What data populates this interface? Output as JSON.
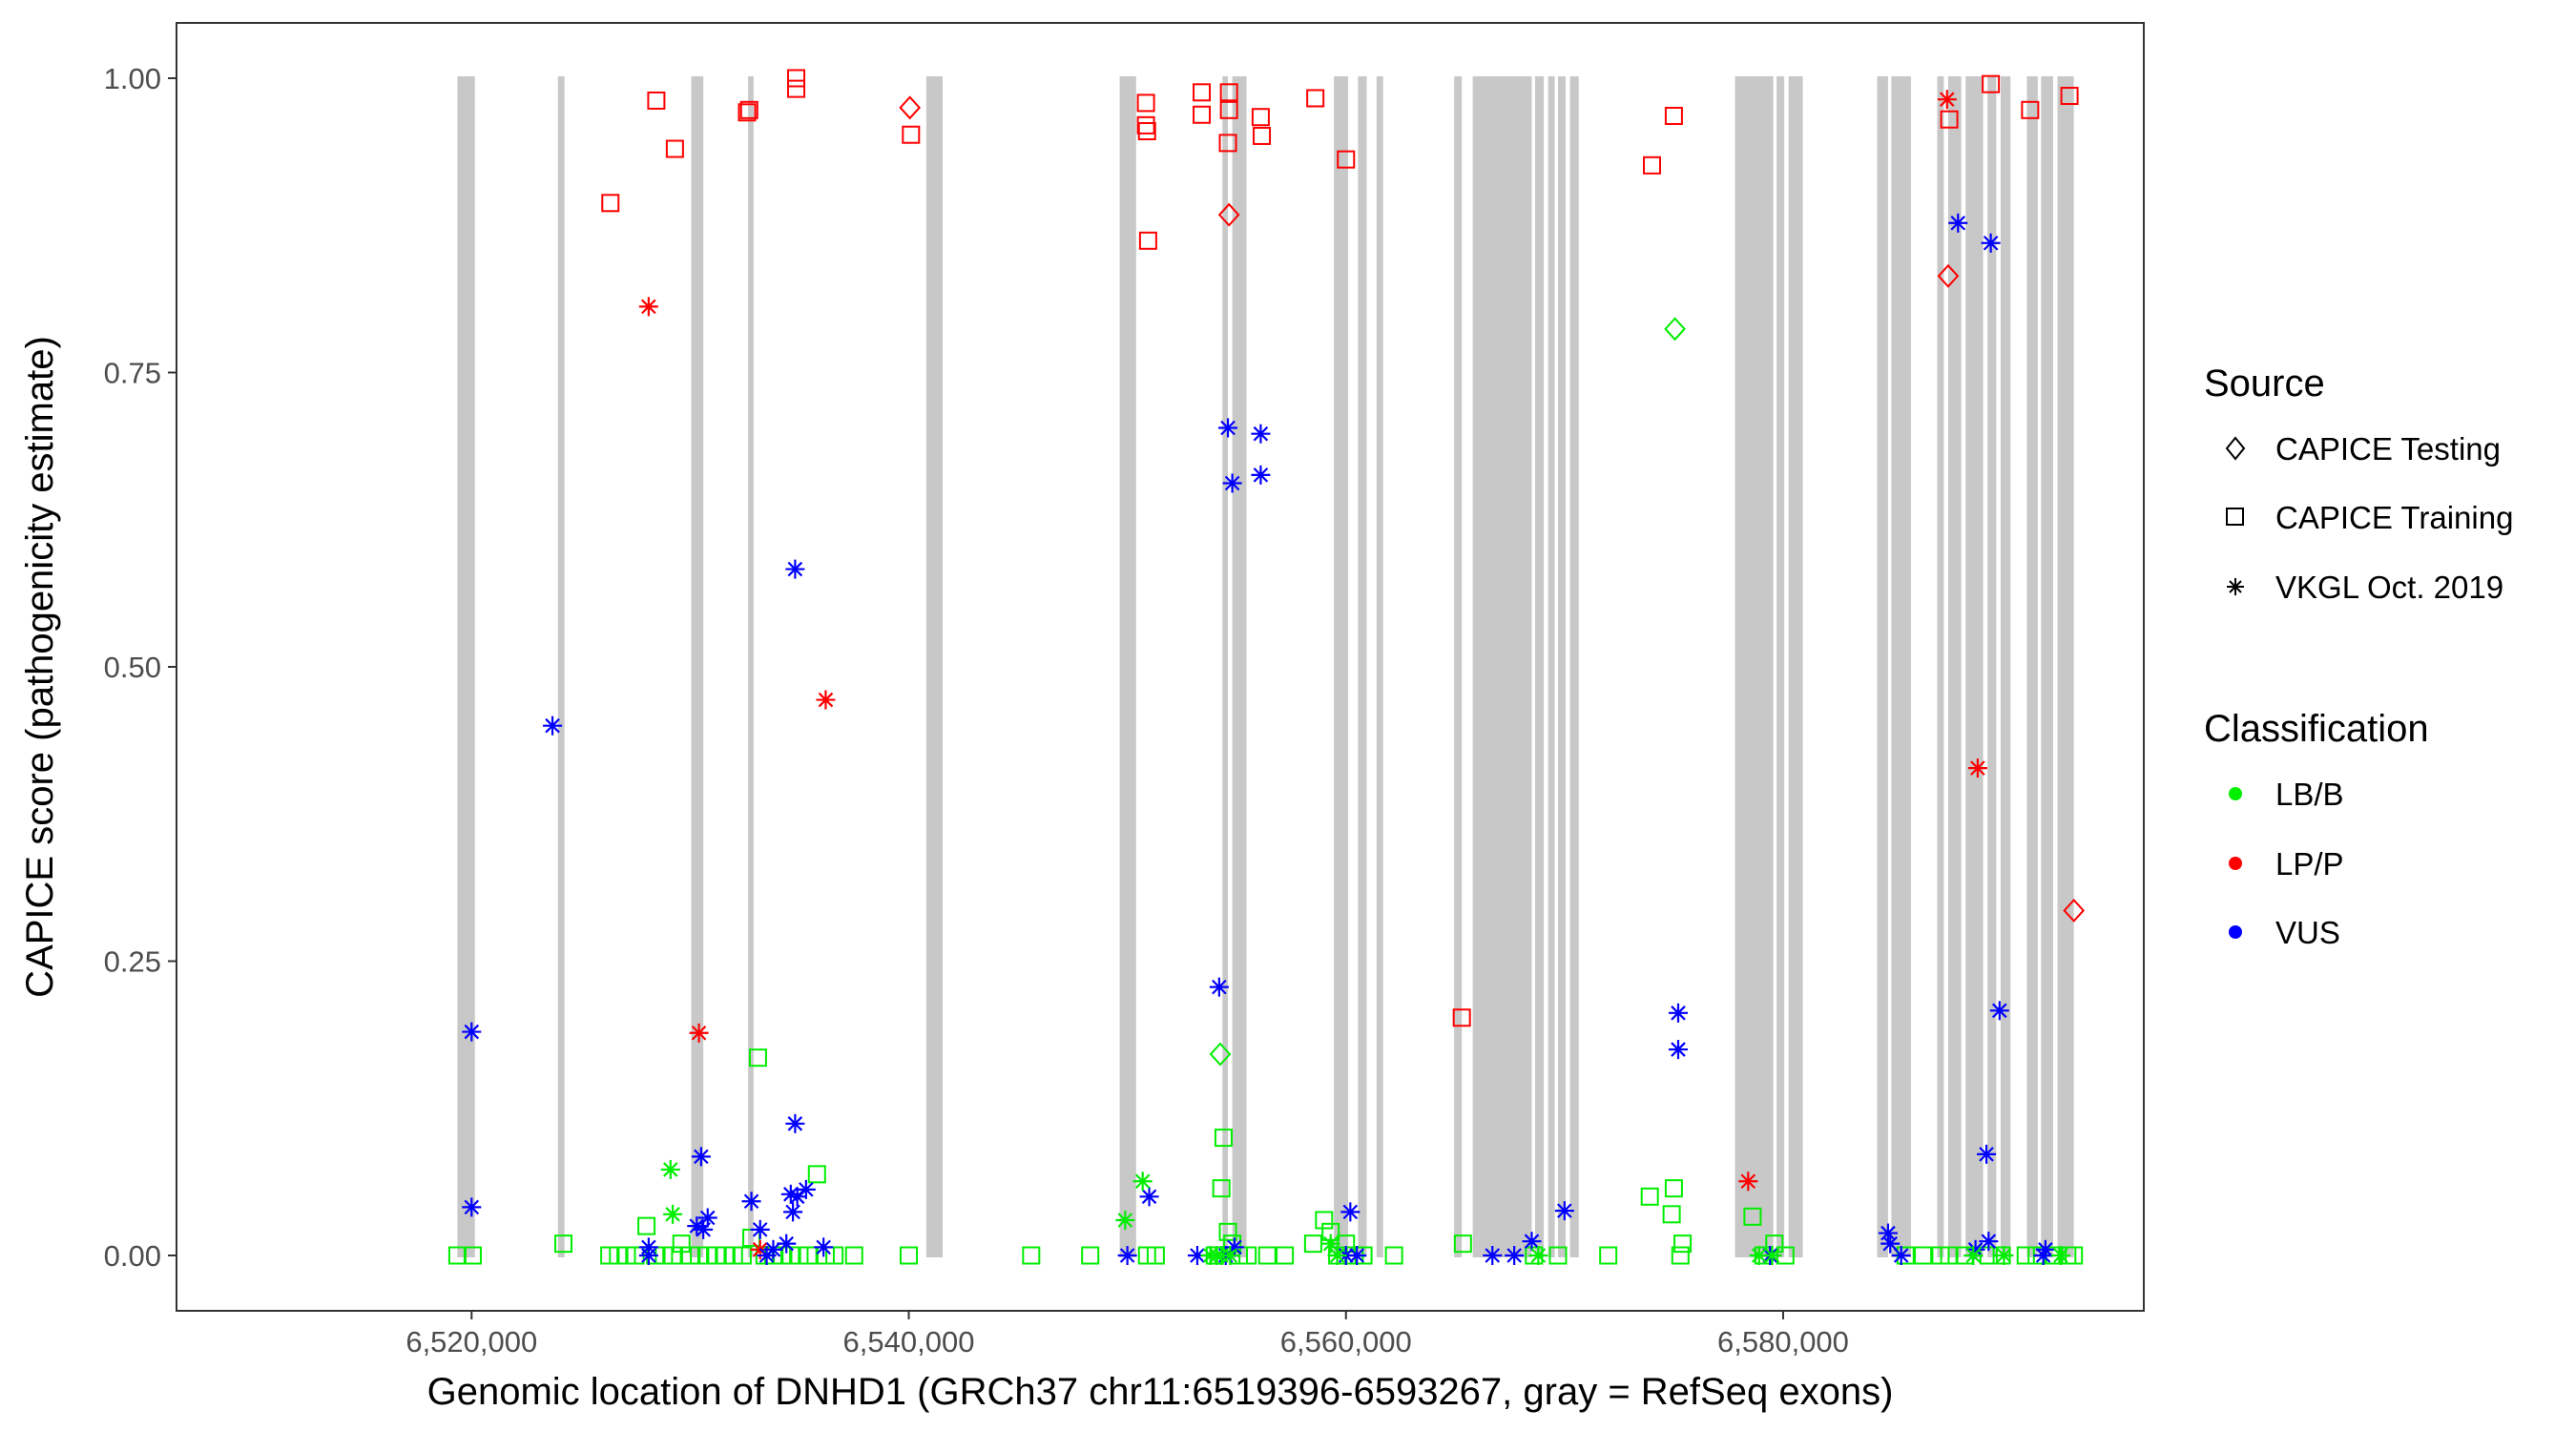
{
  "chart_data": {
    "type": "scatter",
    "title": "",
    "xlabel": "Genomic location of DNHD1 (GRCh37 chr11:6519396-6593267, gray = RefSeq exons)",
    "ylabel": "CAPICE score (pathogenicity estimate)",
    "xlim": [
      6506500,
      6596500
    ],
    "ylim": [
      -0.047,
      1.047
    ],
    "x_ticks": [
      6520000,
      6540000,
      6560000,
      6580000
    ],
    "x_tick_labels": [
      "6,520,000",
      "6,540,000",
      "6,560,000",
      "6,580,000"
    ],
    "y_ticks": [
      0,
      0.25,
      0.5,
      0.75,
      1.0
    ],
    "y_tick_labels": [
      "0.00",
      "0.25",
      "0.50",
      "0.75",
      "1.00"
    ],
    "grid": false,
    "exons": [
      [
        6519350,
        6520150
      ],
      [
        6523950,
        6524250
      ],
      [
        6530050,
        6530600
      ],
      [
        6532650,
        6532900
      ],
      [
        6540800,
        6541550
      ],
      [
        6549650,
        6550400
      ],
      [
        6554350,
        6554600
      ],
      [
        6554800,
        6555450
      ],
      [
        6559450,
        6560100
      ],
      [
        6560550,
        6560950
      ],
      [
        6561400,
        6561700
      ],
      [
        6564950,
        6565300
      ],
      [
        6565800,
        6568500
      ],
      [
        6568650,
        6569050
      ],
      [
        6569250,
        6569550
      ],
      [
        6569700,
        6570050
      ],
      [
        6570250,
        6570650
      ],
      [
        6577800,
        6579550
      ],
      [
        6579700,
        6580050
      ],
      [
        6580250,
        6580900
      ],
      [
        6584300,
        6584800
      ],
      [
        6584950,
        6585850
      ],
      [
        6587050,
        6587350
      ],
      [
        6587550,
        6588150
      ],
      [
        6588350,
        6589150
      ],
      [
        6589350,
        6589750
      ],
      [
        6589950,
        6590400
      ],
      [
        6591150,
        6591650
      ],
      [
        6591800,
        6592350
      ],
      [
        6592550,
        6593300
      ]
    ],
    "series": [
      {
        "source": "CAPICE Testing",
        "classification": "LP/P",
        "points": [
          [
            6540050,
            0.975
          ],
          [
            6554650,
            0.884
          ],
          [
            6587550,
            0.832
          ],
          [
            6593300,
            0.293
          ]
        ]
      },
      {
        "source": "CAPICE Testing",
        "classification": "LB/B",
        "points": [
          [
            6575050,
            0.787
          ],
          [
            6554250,
            0.171
          ]
        ]
      },
      {
        "source": "CAPICE Training",
        "classification": "LP/P",
        "points": [
          [
            6526350,
            0.894
          ],
          [
            6528450,
            0.981
          ],
          [
            6529300,
            0.94
          ],
          [
            6532600,
            0.971
          ],
          [
            6532700,
            0.973
          ],
          [
            6534850,
            1.0
          ],
          [
            6534850,
            0.991
          ],
          [
            6540100,
            0.952
          ],
          [
            6550850,
            0.979
          ],
          [
            6550850,
            0.96
          ],
          [
            6550900,
            0.955
          ],
          [
            6550950,
            0.862
          ],
          [
            6553400,
            0.969
          ],
          [
            6553400,
            0.988
          ],
          [
            6554650,
            0.988
          ],
          [
            6554650,
            0.973
          ],
          [
            6554600,
            0.945
          ],
          [
            6556100,
            0.967
          ],
          [
            6556150,
            0.951
          ],
          [
            6558600,
            0.983
          ],
          [
            6560000,
            0.931
          ],
          [
            6565300,
            0.202
          ],
          [
            6574000,
            0.926
          ],
          [
            6575000,
            0.968
          ],
          [
            6587600,
            0.965
          ],
          [
            6589500,
            0.995
          ],
          [
            6591300,
            0.973
          ],
          [
            6593100,
            0.985
          ]
        ]
      },
      {
        "source": "CAPICE Training",
        "classification": "LB/B",
        "points": [
          [
            6519350,
            0.0
          ],
          [
            6520050,
            0.0
          ],
          [
            6524200,
            0.01
          ],
          [
            6526300,
            0.0
          ],
          [
            6526700,
            0.0
          ],
          [
            6527100,
            0.0
          ],
          [
            6527500,
            0.0
          ],
          [
            6528000,
            0.025
          ],
          [
            6528400,
            0.0
          ],
          [
            6528800,
            0.0
          ],
          [
            6529200,
            0.0
          ],
          [
            6529600,
            0.01
          ],
          [
            6530000,
            0.0
          ],
          [
            6530400,
            0.0
          ],
          [
            6530800,
            0.0
          ],
          [
            6531200,
            0.0
          ],
          [
            6531600,
            0.0
          ],
          [
            6532000,
            0.0
          ],
          [
            6532400,
            0.0
          ],
          [
            6532800,
            0.015
          ],
          [
            6533100,
            0.168
          ],
          [
            6533400,
            0.0
          ],
          [
            6533800,
            0.0
          ],
          [
            6534200,
            0.0
          ],
          [
            6534600,
            0.0
          ],
          [
            6535000,
            0.0
          ],
          [
            6535400,
            0.0
          ],
          [
            6535800,
            0.069
          ],
          [
            6536200,
            0.0
          ],
          [
            6536600,
            0.0
          ],
          [
            6537500,
            0.0
          ],
          [
            6540000,
            0.0
          ],
          [
            6545600,
            0.0
          ],
          [
            6548300,
            0.0
          ],
          [
            6550900,
            0.0
          ],
          [
            6551300,
            0.0
          ],
          [
            6554000,
            0.0
          ],
          [
            6554300,
            0.057
          ],
          [
            6554400,
            0.1
          ],
          [
            6554600,
            0.02
          ],
          [
            6554800,
            0.01
          ],
          [
            6555100,
            0.0
          ],
          [
            6555500,
            0.0
          ],
          [
            6556400,
            0.0
          ],
          [
            6557200,
            0.0
          ],
          [
            6558500,
            0.01
          ],
          [
            6559000,
            0.03
          ],
          [
            6559300,
            0.02
          ],
          [
            6559600,
            0.0
          ],
          [
            6560000,
            0.01
          ],
          [
            6560400,
            0.0
          ],
          [
            6560800,
            0.0
          ],
          [
            6562200,
            0.0
          ],
          [
            6565350,
            0.01
          ],
          [
            6568600,
            0.0
          ],
          [
            6569700,
            0.0
          ],
          [
            6572000,
            0.0
          ],
          [
            6573900,
            0.05
          ],
          [
            6574900,
            0.035
          ],
          [
            6575000,
            0.057
          ],
          [
            6575300,
            0.0
          ],
          [
            6575400,
            0.01
          ],
          [
            6578600,
            0.033
          ],
          [
            6579100,
            0.0
          ],
          [
            6579600,
            0.01
          ],
          [
            6580100,
            0.0
          ],
          [
            6585600,
            0.0
          ],
          [
            6586400,
            0.0
          ],
          [
            6587200,
            0.0
          ],
          [
            6587600,
            0.0
          ],
          [
            6588300,
            0.0
          ],
          [
            6589400,
            0.0
          ],
          [
            6590000,
            0.0
          ],
          [
            6591100,
            0.0
          ],
          [
            6591600,
            0.0
          ],
          [
            6592400,
            0.0
          ],
          [
            6593000,
            0.0
          ],
          [
            6593300,
            0.0
          ]
        ]
      },
      {
        "source": "VKGL Oct. 2019",
        "classification": "LP/P",
        "points": [
          [
            6528100,
            0.806
          ],
          [
            6530400,
            0.189
          ],
          [
            6536200,
            0.472
          ],
          [
            6533200,
            0.005
          ],
          [
            6578400,
            0.063
          ],
          [
            6587500,
            0.982
          ],
          [
            6588900,
            0.414
          ]
        ]
      },
      {
        "source": "VKGL Oct. 2019",
        "classification": "VUS",
        "points": [
          [
            6520000,
            0.19
          ],
          [
            6520000,
            0.041
          ],
          [
            6523700,
            0.45
          ],
          [
            6528100,
            0.0
          ],
          [
            6528100,
            0.007
          ],
          [
            6530300,
            0.025
          ],
          [
            6530500,
            0.084
          ],
          [
            6530600,
            0.022
          ],
          [
            6530800,
            0.032
          ],
          [
            6532800,
            0.046
          ],
          [
            6533200,
            0.022
          ],
          [
            6533500,
            0.0
          ],
          [
            6533800,
            0.005
          ],
          [
            6534400,
            0.01
          ],
          [
            6534800,
            0.583
          ],
          [
            6534800,
            0.112
          ],
          [
            6534600,
            0.052
          ],
          [
            6534700,
            0.037
          ],
          [
            6534900,
            0.05
          ],
          [
            6535300,
            0.056
          ],
          [
            6536100,
            0.007
          ],
          [
            6550000,
            0.0
          ],
          [
            6551000,
            0.05
          ],
          [
            6553200,
            0.0
          ],
          [
            6554200,
            0.228
          ],
          [
            6554500,
            0.0
          ],
          [
            6554600,
            0.703
          ],
          [
            6554800,
            0.656
          ],
          [
            6554900,
            0.007
          ],
          [
            6556100,
            0.698
          ],
          [
            6556100,
            0.663
          ],
          [
            6560000,
            0.0
          ],
          [
            6560200,
            0.037
          ],
          [
            6560500,
            0.0
          ],
          [
            6566700,
            0.0
          ],
          [
            6567700,
            0.0
          ],
          [
            6568500,
            0.012
          ],
          [
            6570000,
            0.038
          ],
          [
            6575200,
            0.206
          ],
          [
            6575200,
            0.175
          ],
          [
            6579400,
            0.0
          ],
          [
            6584800,
            0.019
          ],
          [
            6584900,
            0.01
          ],
          [
            6585400,
            0.0
          ],
          [
            6588000,
            0.877
          ],
          [
            6588800,
            0.005
          ],
          [
            6589300,
            0.086
          ],
          [
            6589400,
            0.012
          ],
          [
            6589500,
            0.86
          ],
          [
            6589900,
            0.208
          ],
          [
            6591900,
            0.0
          ],
          [
            6592000,
            0.005
          ]
        ]
      },
      {
        "source": "VKGL Oct. 2019",
        "classification": "LB/B",
        "points": [
          [
            6529100,
            0.073
          ],
          [
            6529200,
            0.035
          ],
          [
            6549900,
            0.03
          ],
          [
            6550700,
            0.063
          ],
          [
            6553800,
            0.0
          ],
          [
            6554100,
            0.0
          ],
          [
            6554300,
            0.0
          ],
          [
            6554700,
            0.0
          ],
          [
            6559300,
            0.01
          ],
          [
            6559600,
            0.0
          ],
          [
            6568800,
            0.0
          ],
          [
            6578900,
            0.0
          ],
          [
            6579500,
            0.0
          ],
          [
            6588700,
            0.0
          ],
          [
            6590100,
            0.0
          ],
          [
            6592700,
            0.0
          ]
        ]
      }
    ],
    "legend": {
      "placement": "right",
      "source_title": "Source",
      "source_items": [
        {
          "label": "CAPICE Testing",
          "shape": "diamond"
        },
        {
          "label": "CAPICE Training",
          "shape": "square"
        },
        {
          "label": "VKGL Oct. 2019",
          "shape": "asterisk"
        }
      ],
      "class_title": "Classification",
      "class_items": [
        {
          "label": "LB/B",
          "color": "#00ee00"
        },
        {
          "label": "LP/P",
          "color": "#ff0000"
        },
        {
          "label": "VUS",
          "color": "#0000ff"
        }
      ]
    },
    "colors": {
      "LB/B": "#00ee00",
      "LP/P": "#ff0000",
      "VUS": "#0000ff",
      "exon": "#c8c8c8",
      "panel_border": "#333333",
      "axis_text": "#4d4d4d"
    }
  }
}
